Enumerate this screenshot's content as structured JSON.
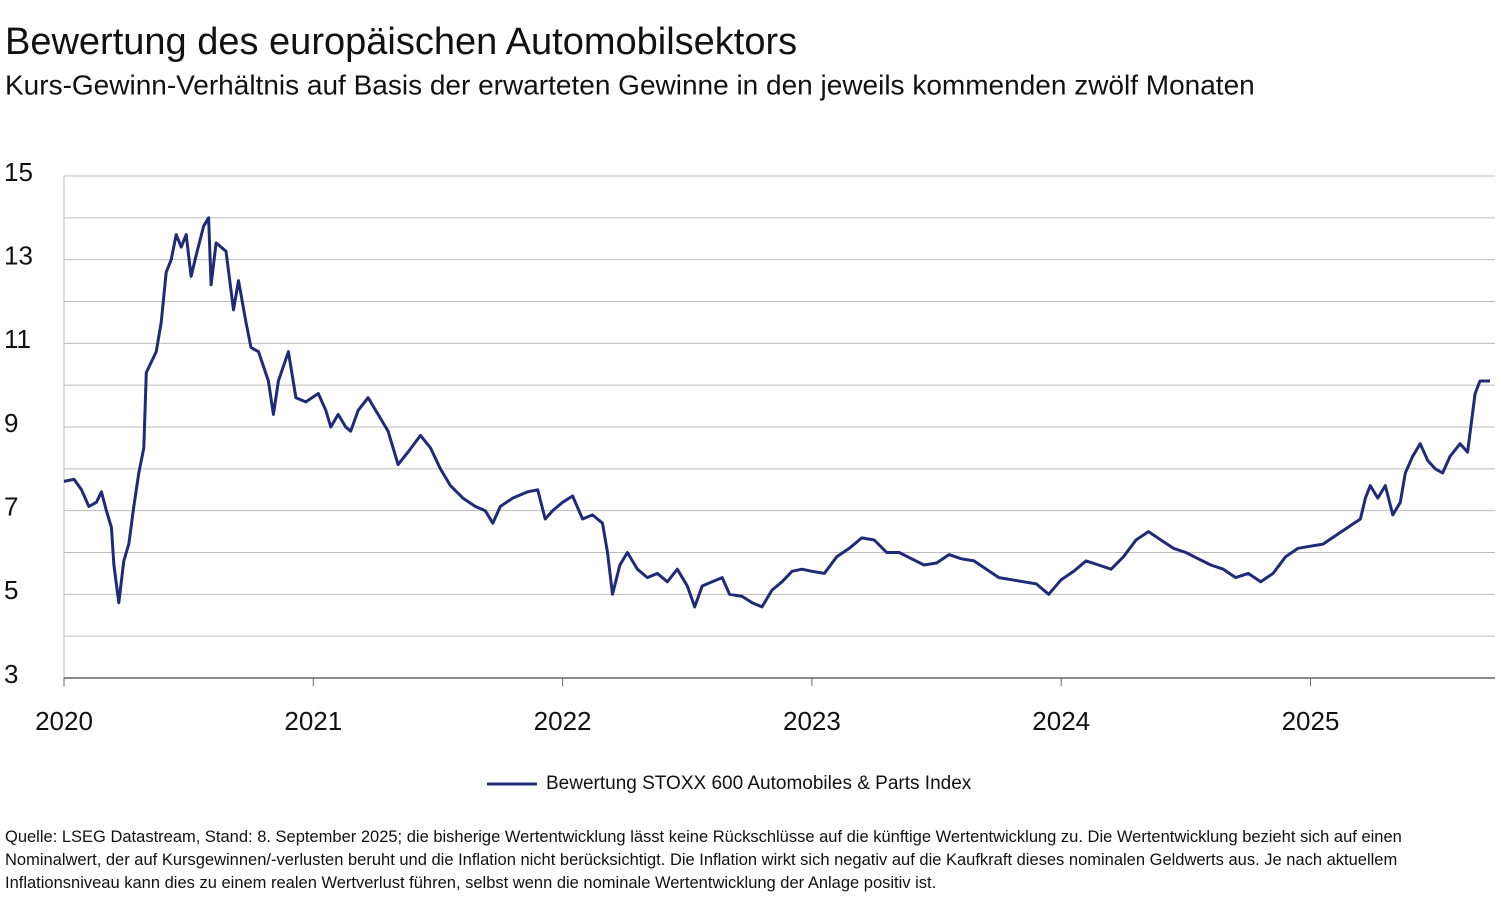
{
  "chart_data": {
    "type": "line",
    "title": "Bewertung des europäischen Automobilsektors",
    "subtitle": "Kurs-Gewinn-Verhältnis auf Basis der erwarteten Gewinne in den jeweils kommenden zwölf Monaten",
    "note": "Quelle: LSEG Datastream, Stand: 8. September 2025; die bisherige Wertentwicklung lässt keine Rückschlüsse auf die künftige Wertentwicklung zu. Die Wertentwicklung bezieht sich auf einen Nominalwert, der auf Kursgewinnen/-verlusten beruht und die Inflation nicht berücksichtigt. Die Inflation wirkt sich negativ auf die Kaufkraft dieses nominalen Geldwerts aus. Je nach aktuellem Inflationsniveau kann dies zu einem realen Wertverlust führen, selbst wenn die nominale Wertentwicklung der Anlage positiv ist.",
    "x": [
      2020.0,
      2020.04,
      2020.07,
      2020.1,
      2020.13,
      2020.15,
      2020.17,
      2020.19,
      2020.2,
      2020.22,
      2020.24,
      2020.26,
      2020.28,
      2020.3,
      2020.32,
      2020.33,
      2020.37,
      2020.39,
      2020.41,
      2020.43,
      2020.45,
      2020.47,
      2020.49,
      2020.51,
      2020.53,
      2020.56,
      2020.58,
      2020.59,
      2020.61,
      2020.65,
      2020.68,
      2020.7,
      2020.73,
      2020.75,
      2020.78,
      2020.82,
      2020.84,
      2020.86,
      2020.9,
      2020.93,
      2020.97,
      2021.02,
      2021.05,
      2021.07,
      2021.1,
      2021.13,
      2021.15,
      2021.18,
      2021.22,
      2021.26,
      2021.3,
      2021.34,
      2021.38,
      2021.43,
      2021.47,
      2021.51,
      2021.55,
      2021.6,
      2021.65,
      2021.69,
      2021.72,
      2021.75,
      2021.8,
      2021.86,
      2021.9,
      2021.93,
      2021.96,
      2022.0,
      2022.04,
      2022.08,
      2022.12,
      2022.16,
      2022.18,
      2022.2,
      2022.23,
      2022.26,
      2022.3,
      2022.34,
      2022.38,
      2022.42,
      2022.46,
      2022.5,
      2022.53,
      2022.56,
      2022.6,
      2022.64,
      2022.67,
      2022.72,
      2022.76,
      2022.8,
      2022.84,
      2022.88,
      2022.92,
      2022.96,
      2023.0,
      2023.05,
      2023.1,
      2023.15,
      2023.2,
      2023.25,
      2023.3,
      2023.35,
      2023.4,
      2023.45,
      2023.5,
      2023.55,
      2023.6,
      2023.65,
      2023.7,
      2023.75,
      2023.8,
      2023.85,
      2023.9,
      2023.95,
      2024.0,
      2024.05,
      2024.1,
      2024.15,
      2024.2,
      2024.25,
      2024.3,
      2024.35,
      2024.4,
      2024.45,
      2024.5,
      2024.55,
      2024.6,
      2024.65,
      2024.7,
      2024.75,
      2024.8,
      2024.85,
      2024.9,
      2024.95,
      2025.0,
      2025.05,
      2025.1,
      2025.15,
      2025.2,
      2025.22,
      2025.24,
      2025.27,
      2025.3,
      2025.33,
      2025.36,
      2025.38,
      2025.41,
      2025.44,
      2025.47,
      2025.5,
      2025.53,
      2025.56,
      2025.6,
      2025.63,
      2025.66,
      2025.68,
      2025.72
    ],
    "series": [
      {
        "name": "Bewertung STOXX 600 Automobiles & Parts Index",
        "color": "#1f2a78",
        "values": [
          7.7,
          7.75,
          7.5,
          7.1,
          7.2,
          7.45,
          7.0,
          6.6,
          5.7,
          4.8,
          5.8,
          6.2,
          7.1,
          7.9,
          8.5,
          10.3,
          10.8,
          11.5,
          12.7,
          13.0,
          13.6,
          13.3,
          13.6,
          12.6,
          13.1,
          13.8,
          14.0,
          12.4,
          13.4,
          13.2,
          11.8,
          12.5,
          11.5,
          10.9,
          10.8,
          10.1,
          9.3,
          10.1,
          10.8,
          9.7,
          9.6,
          9.8,
          9.4,
          9.0,
          9.3,
          9.0,
          8.9,
          9.4,
          9.7,
          9.3,
          8.9,
          8.1,
          8.4,
          8.8,
          8.5,
          8.0,
          7.6,
          7.3,
          7.1,
          7.0,
          6.7,
          7.1,
          7.3,
          7.45,
          7.5,
          6.8,
          7.0,
          7.2,
          7.35,
          6.8,
          6.9,
          6.7,
          6.0,
          5.0,
          5.7,
          6.0,
          5.6,
          5.4,
          5.5,
          5.3,
          5.6,
          5.2,
          4.7,
          5.2,
          5.3,
          5.4,
          5.0,
          4.95,
          4.8,
          4.7,
          5.1,
          5.3,
          5.55,
          5.6,
          5.55,
          5.5,
          5.9,
          6.1,
          6.35,
          6.3,
          6.0,
          6.0,
          5.85,
          5.7,
          5.75,
          5.95,
          5.85,
          5.8,
          5.6,
          5.4,
          5.35,
          5.3,
          5.25,
          5.0,
          5.35,
          5.55,
          5.8,
          5.7,
          5.6,
          5.9,
          6.3,
          6.5,
          6.3,
          6.1,
          6.0,
          5.85,
          5.7,
          5.6,
          5.4,
          5.5,
          5.3,
          5.5,
          5.9,
          6.1,
          6.15,
          6.2,
          6.4,
          6.6,
          6.8,
          7.3,
          7.6,
          7.3,
          7.6,
          6.9,
          7.2,
          7.9,
          8.3,
          8.6,
          8.2,
          8.0,
          7.9,
          8.3,
          8.6,
          8.4,
          9.8,
          10.1,
          10.1
        ]
      }
    ],
    "xlim": [
      2020,
      2025.74
    ],
    "xticks": [
      2020,
      2021,
      2022,
      2023,
      2024,
      2025
    ],
    "ylim": [
      3,
      15
    ],
    "yticks": [
      3,
      5,
      7,
      9,
      11,
      13,
      15
    ],
    "minor_yticks": [
      4,
      6,
      8,
      10,
      12,
      14
    ],
    "grid": true,
    "legend": "bottom"
  }
}
